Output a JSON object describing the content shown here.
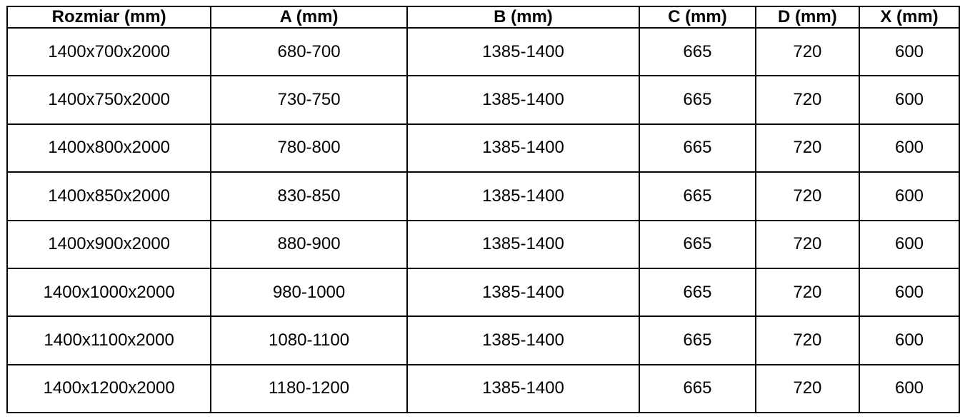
{
  "table": {
    "column_keys": [
      "rozmiar",
      "a",
      "b",
      "c",
      "d",
      "x"
    ],
    "headers": [
      "Rozmiar (mm)",
      "A (mm)",
      "B (mm)",
      "C (mm)",
      "D (mm)",
      "X (mm)"
    ],
    "rows": [
      [
        "1400x700x2000",
        "680-700",
        "1385-1400",
        "665",
        "720",
        "600"
      ],
      [
        "1400x750x2000",
        "730-750",
        "1385-1400",
        "665",
        "720",
        "600"
      ],
      [
        "1400x800x2000",
        "780-800",
        "1385-1400",
        "665",
        "720",
        "600"
      ],
      [
        "1400x850x2000",
        "830-850",
        "1385-1400",
        "665",
        "720",
        "600"
      ],
      [
        "1400x900x2000",
        "880-900",
        "1385-1400",
        "665",
        "720",
        "600"
      ],
      [
        "1400x1000x2000",
        "980-1000",
        "1385-1400",
        "665",
        "720",
        "600"
      ],
      [
        "1400x1100x2000",
        "1080-1100",
        "1385-1400",
        "665",
        "720",
        "600"
      ],
      [
        "1400x1200x2000",
        "1180-1200",
        "1385-1400",
        "665",
        "720",
        "600"
      ]
    ],
    "colors": {
      "border": "#000000",
      "text": "#000000",
      "background": "#ffffff"
    }
  }
}
